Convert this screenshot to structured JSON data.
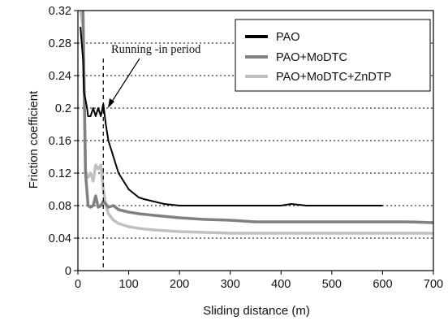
{
  "chart_data": {
    "type": "line",
    "xlabel": "Sliding distance (m)",
    "ylabel": "Friction coefficient",
    "xlim": [
      0,
      700
    ],
    "ylim": [
      0,
      0.32
    ],
    "x_ticks": [
      "0",
      "100",
      "200",
      "300",
      "400",
      "500",
      "600",
      "700"
    ],
    "y_ticks": [
      "0",
      "0.04",
      "0.08",
      "0.12",
      "0.16",
      "0.2",
      "0.24",
      "0.28",
      "0.32"
    ],
    "grid": "horizontal dotted",
    "legend_position": "top-right",
    "annotation": {
      "text": "Running -in period",
      "x": 50
    },
    "series": [
      {
        "name": "PAO",
        "color": "#000000",
        "x": [
          5,
          10,
          12,
          15,
          18,
          20,
          25,
          30,
          35,
          40,
          45,
          50,
          55,
          60,
          65,
          70,
          75,
          80,
          90,
          100,
          110,
          120,
          130,
          150,
          170,
          200,
          250,
          300,
          350,
          400,
          420,
          450,
          500,
          550,
          600
        ],
        "y": [
          0.3,
          0.26,
          0.22,
          0.21,
          0.2,
          0.19,
          0.19,
          0.2,
          0.19,
          0.2,
          0.19,
          0.205,
          0.18,
          0.16,
          0.15,
          0.14,
          0.13,
          0.12,
          0.11,
          0.1,
          0.095,
          0.09,
          0.088,
          0.085,
          0.082,
          0.08,
          0.08,
          0.08,
          0.08,
          0.08,
          0.082,
          0.08,
          0.08,
          0.08,
          0.08
        ]
      },
      {
        "name": "PAO+MoDTC",
        "color": "#808080",
        "x": [
          10,
          15,
          20,
          25,
          30,
          35,
          40,
          45,
          50,
          55,
          60,
          70,
          80,
          100,
          120,
          150,
          200,
          250,
          300,
          350,
          400,
          450,
          500,
          550,
          600,
          650,
          700
        ],
        "y": [
          0.32,
          0.12,
          0.08,
          0.078,
          0.08,
          0.092,
          0.078,
          0.08,
          0.085,
          0.082,
          0.078,
          0.08,
          0.075,
          0.072,
          0.07,
          0.068,
          0.065,
          0.063,
          0.062,
          0.06,
          0.06,
          0.06,
          0.06,
          0.06,
          0.06,
          0.06,
          0.059
        ]
      },
      {
        "name": "PAO+MoDTC+ZnDTP",
        "color": "#c0c0c0",
        "x": [
          5,
          10,
          15,
          20,
          25,
          30,
          35,
          40,
          45,
          50,
          55,
          60,
          70,
          80,
          100,
          120,
          150,
          200,
          250,
          300,
          350,
          400,
          450,
          500,
          550,
          600,
          650,
          700
        ],
        "y": [
          0.32,
          0.3,
          0.12,
          0.115,
          0.12,
          0.11,
          0.13,
          0.125,
          0.13,
          0.1,
          0.08,
          0.07,
          0.062,
          0.058,
          0.054,
          0.052,
          0.05,
          0.048,
          0.047,
          0.046,
          0.046,
          0.046,
          0.046,
          0.046,
          0.046,
          0.046,
          0.046,
          0.046
        ]
      }
    ]
  }
}
